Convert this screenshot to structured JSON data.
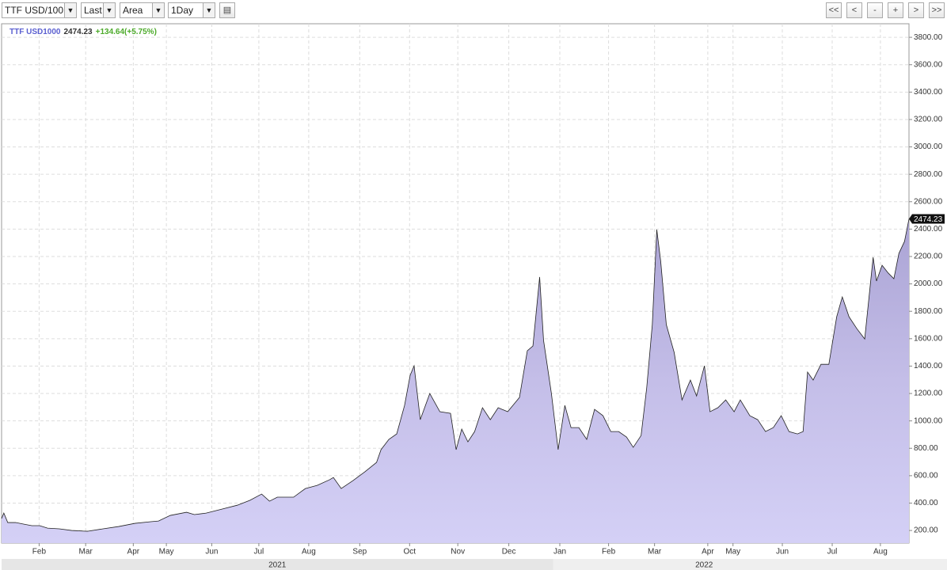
{
  "toolbar": {
    "symbol": "TTF USD/100",
    "price_type": "Last",
    "chart_type": "Area",
    "interval": "1Day",
    "buttons": [
      "<<",
      "<",
      "-",
      "+",
      ">",
      ">>"
    ]
  },
  "chart_data": {
    "type": "area",
    "legend": {
      "name": "TTF USD1000",
      "change": "+134.64(+5.75%)"
    },
    "series": [
      {
        "name": "TTF USD1000",
        "color": "#cdc8f0",
        "x": [
          2021.016,
          2021.02,
          2021.027,
          2021.041,
          2021.056,
          2021.07,
          2021.084,
          2021.098,
          2021.119,
          2021.141,
          2021.169,
          2021.197,
          2021.225,
          2021.254,
          2021.282,
          2021.296,
          2021.317,
          2021.346,
          2021.36,
          2021.381,
          2021.409,
          2021.437,
          2021.459,
          2021.48,
          2021.494,
          2021.508,
          2021.537,
          2021.558,
          2021.579,
          2021.601,
          2021.608,
          2021.622,
          2021.643,
          2021.664,
          2021.685,
          2021.693,
          2021.707,
          2021.721,
          2021.735,
          2021.745,
          2021.752,
          2021.763,
          2021.78,
          2021.798,
          2021.817,
          2021.827,
          2021.837,
          2021.848,
          2021.86,
          2021.874,
          2021.888,
          2021.902,
          2021.919,
          2021.94,
          2021.954,
          2021.964,
          2021.976,
          2021.983,
          2021.997,
          2022.009,
          2022.021,
          2022.032,
          2022.046,
          2022.06,
          2022.074,
          2022.089,
          2022.103,
          2022.117,
          2022.131,
          2022.143,
          2022.157,
          2022.167,
          2022.177,
          2022.185,
          2022.192,
          2022.202,
          2022.216,
          2022.23,
          2022.245,
          2022.256,
          2022.27,
          2022.28,
          2022.294,
          2022.308,
          2022.323,
          2022.334,
          2022.351,
          2022.365,
          2022.379,
          2022.393,
          2022.407,
          2022.421,
          2022.436,
          2022.446,
          2022.454,
          2022.464,
          2022.478,
          2022.492,
          2022.506,
          2022.516,
          2022.528,
          2022.542,
          2022.556,
          2022.563,
          2022.571,
          2022.577,
          2022.587,
          2022.598,
          2022.608,
          2022.617,
          2022.627,
          2022.635
        ],
        "values": [
          287,
          327,
          258,
          258,
          246,
          235,
          235,
          217,
          212,
          200,
          194,
          212,
          229,
          252,
          264,
          269,
          310,
          333,
          316,
          327,
          356,
          385,
          420,
          466,
          414,
          443,
          443,
          506,
          529,
          570,
          587,
          506,
          564,
          628,
          697,
          790,
          865,
          905,
          1113,
          1333,
          1402,
          1009,
          1200,
          1067,
          1055,
          790,
          940,
          847,
          922,
          1096,
          1009,
          1096,
          1067,
          1171,
          1512,
          1547,
          2050,
          1587,
          1200,
          790,
          1113,
          951,
          951,
          865,
          1084,
          1038,
          922,
          922,
          882,
          807,
          893,
          1240,
          1703,
          2396,
          2165,
          1703,
          1500,
          1153,
          1298,
          1182,
          1402,
          1067,
          1096,
          1153,
          1067,
          1153,
          1038,
          1009,
          922,
          951,
          1038,
          922,
          905,
          922,
          1356,
          1298,
          1413,
          1413,
          1760,
          1905,
          1760,
          1673,
          1598,
          1876,
          2194,
          2021,
          2136,
          2079,
          2038,
          2223,
          2310,
          2474.23
        ]
      }
    ],
    "xlim": [
      2021.016,
      2022.635
    ],
    "xticks": [
      {
        "value": 2021.083,
        "label": "Feb"
      },
      {
        "value": 2021.166,
        "label": "Mar"
      },
      {
        "value": 2021.251,
        "label": "Apr"
      },
      {
        "value": 2021.31,
        "label": "May"
      },
      {
        "value": 2021.391,
        "label": "Jun"
      },
      {
        "value": 2021.475,
        "label": "Jul"
      },
      {
        "value": 2021.564,
        "label": "Aug"
      },
      {
        "value": 2021.655,
        "label": "Sep"
      },
      {
        "value": 2021.744,
        "label": "Oct"
      },
      {
        "value": 2021.83,
        "label": "Nov"
      },
      {
        "value": 2021.921,
        "label": "Dec"
      },
      {
        "value": 2022.012,
        "label": "Jan"
      },
      {
        "value": 2022.099,
        "label": "Feb"
      },
      {
        "value": 2022.181,
        "label": "Mar"
      },
      {
        "value": 2022.276,
        "label": "Apr"
      },
      {
        "value": 2022.321,
        "label": "May"
      },
      {
        "value": 2022.409,
        "label": "Jun"
      },
      {
        "value": 2022.498,
        "label": "Jul"
      },
      {
        "value": 2022.584,
        "label": "Aug"
      }
    ],
    "years": [
      2021,
      2022
    ],
    "ylim": [
      108,
      3899
    ],
    "yticks": [
      {
        "value": 200,
        "label": "200.00"
      },
      {
        "value": 400,
        "label": "400.00"
      },
      {
        "value": 600,
        "label": "600.00"
      },
      {
        "value": 800,
        "label": "800.00"
      },
      {
        "value": 1000,
        "label": "1000.00"
      },
      {
        "value": 1200,
        "label": "1200.00"
      },
      {
        "value": 1400,
        "label": "1400.00"
      },
      {
        "value": 1600,
        "label": "1600.00"
      },
      {
        "value": 1800,
        "label": "1800.00"
      },
      {
        "value": 2000,
        "label": "2000.00"
      },
      {
        "value": 2200,
        "label": "2200.00"
      },
      {
        "value": 2400,
        "label": "2400.00"
      },
      {
        "value": 2600,
        "label": "2600.00"
      },
      {
        "value": 2800,
        "label": "2800.00"
      },
      {
        "value": 3000,
        "label": "3000.00"
      },
      {
        "value": 3200,
        "label": "3200.00"
      },
      {
        "value": 3400,
        "label": "3400.00"
      },
      {
        "value": 3600,
        "label": "3600.00"
      },
      {
        "value": 3800,
        "label": "3800.00"
      }
    ],
    "grid": true
  }
}
